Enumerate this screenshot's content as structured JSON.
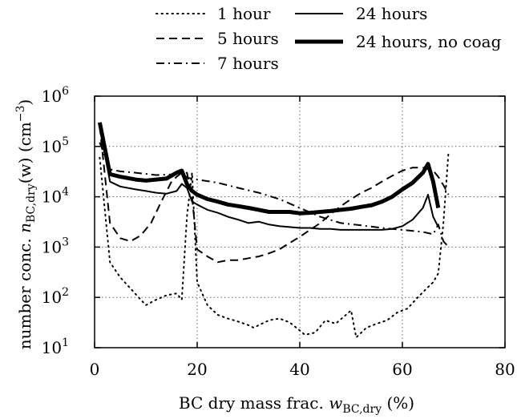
{
  "chart_data": {
    "type": "line",
    "title": "",
    "xlabel": {
      "main": "BC dry mass frac. ",
      "var": "w",
      "sub": "BC,dry",
      "unit": " (%)"
    },
    "ylabel": {
      "main": "number conc. ",
      "var": "n",
      "sub": "BC,dry",
      "arg": "(w)",
      "unit": " (cm",
      "unit_exp": "−3",
      "unit_close": ")"
    },
    "xlim": [
      0,
      80
    ],
    "ylim": [
      10,
      1000000
    ],
    "yscale": "log",
    "grid": true,
    "legend_position": "top",
    "x_ticks": [
      0,
      20,
      40,
      60,
      80
    ],
    "x_tick_labels": [
      "0",
      "20",
      "40",
      "60",
      "80"
    ],
    "y_ticks": [
      10,
      100,
      1000,
      10000,
      100000,
      1000000
    ],
    "y_tick_base": "10",
    "y_tick_exponents": [
      "1",
      "2",
      "3",
      "4",
      "5",
      "6"
    ],
    "series": [
      {
        "name": "1 hour",
        "style": "dotted",
        "width": 2,
        "x": [
          1,
          3,
          5,
          7,
          9,
          10,
          12,
          14,
          16,
          17,
          18,
          19,
          20,
          22,
          24,
          26,
          28,
          30,
          31,
          32,
          34,
          36,
          38,
          40,
          41,
          43,
          45,
          47,
          49,
          50,
          51,
          53,
          55,
          57,
          59,
          61,
          63,
          65,
          66,
          67,
          68,
          69
        ],
        "y": [
          60000,
          500,
          250,
          150,
          90,
          70,
          90,
          110,
          120,
          90,
          4000,
          30000,
          200,
          70,
          45,
          38,
          33,
          28,
          25,
          28,
          35,
          38,
          32,
          22,
          18,
          20,
          35,
          30,
          45,
          55,
          16,
          25,
          30,
          35,
          50,
          60,
          100,
          160,
          200,
          300,
          3000,
          80000
        ]
      },
      {
        "name": "5 hours",
        "style": "dashed",
        "width": 2,
        "x": [
          1,
          3,
          5,
          7,
          9,
          11,
          13,
          15,
          16,
          17,
          18,
          19,
          20,
          22,
          24,
          26,
          28,
          30,
          32,
          34,
          36,
          38,
          40,
          42,
          44,
          46,
          48,
          50,
          52,
          54,
          56,
          58,
          60,
          62,
          64,
          66,
          67,
          68,
          69
        ],
        "y": [
          250000,
          3000,
          1500,
          1300,
          1700,
          3000,
          8000,
          20000,
          25000,
          30000,
          30000,
          10000,
          900,
          650,
          500,
          550,
          550,
          600,
          650,
          750,
          900,
          1200,
          1600,
          2200,
          3000,
          4500,
          6500,
          9000,
          12000,
          15000,
          20000,
          26000,
          33000,
          38000,
          38000,
          33000,
          25000,
          17000,
          11000
        ]
      },
      {
        "name": "7 hours",
        "style": "dashdot",
        "width": 2,
        "x": [
          1,
          3,
          5,
          8,
          12,
          16,
          17,
          18,
          20,
          24,
          28,
          32,
          36,
          40,
          44,
          48,
          52,
          56,
          60,
          64,
          66,
          67,
          68,
          69
        ],
        "y": [
          120000,
          35000,
          32000,
          30000,
          27000,
          28000,
          30000,
          24000,
          22000,
          19000,
          15000,
          12000,
          9000,
          6000,
          4000,
          3000,
          2700,
          2400,
          2200,
          2000,
          1800,
          2800,
          1300,
          1000
        ]
      },
      {
        "name": "24 hours",
        "style": "solid",
        "width": 2,
        "x": [
          1,
          3,
          5,
          8,
          10,
          12,
          14,
          16,
          17,
          18,
          19,
          20,
          22,
          24,
          26,
          28,
          30,
          32,
          34,
          36,
          38,
          40,
          42,
          44,
          46,
          48,
          50,
          52,
          54,
          56,
          58,
          60,
          62,
          64,
          65,
          66,
          67
        ],
        "y": [
          250000,
          20000,
          16000,
          14000,
          13000,
          12000,
          11500,
          13000,
          18000,
          15000,
          8000,
          7000,
          5500,
          4800,
          4000,
          3500,
          3000,
          3200,
          2800,
          2600,
          2500,
          2400,
          2400,
          2300,
          2300,
          2200,
          2200,
          2200,
          2200,
          2200,
          2300,
          2600,
          3500,
          6000,
          11000,
          4000,
          2500
        ]
      },
      {
        "name": "24 hours, no coag",
        "style": "solid",
        "width": 5,
        "x": [
          1,
          3,
          5,
          8,
          10,
          12,
          14,
          16,
          17,
          18,
          19,
          20,
          22,
          24,
          26,
          28,
          30,
          32,
          34,
          36,
          38,
          40,
          42,
          44,
          46,
          48,
          50,
          52,
          54,
          56,
          58,
          60,
          62,
          64,
          65,
          66,
          67
        ],
        "y": [
          300000,
          28000,
          25000,
          22000,
          21000,
          22000,
          23000,
          30000,
          33000,
          18000,
          13000,
          11000,
          9000,
          8000,
          7000,
          6500,
          6000,
          5500,
          5000,
          5000,
          5000,
          4700,
          4800,
          5000,
          5200,
          5500,
          5800,
          6300,
          6800,
          8000,
          10000,
          14000,
          19000,
          30000,
          45000,
          20000,
          6000
        ]
      }
    ]
  }
}
